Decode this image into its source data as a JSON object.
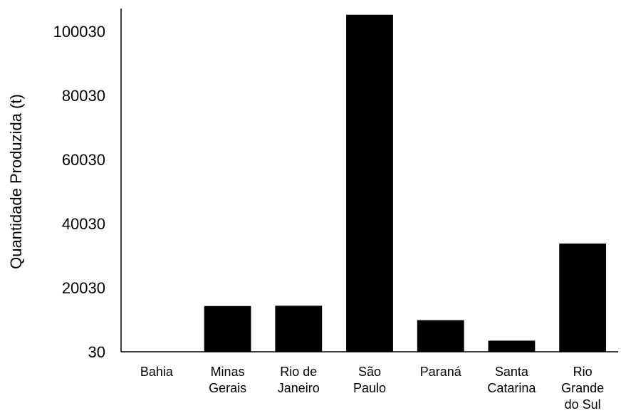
{
  "chart_data": {
    "type": "bar",
    "title": "",
    "xlabel": "",
    "ylabel": "Quantidade Produzida (t)",
    "categories": [
      [
        "Bahia"
      ],
      [
        "Minas",
        "Gerais"
      ],
      [
        "Rio de",
        "Janeiro"
      ],
      [
        "São",
        "Paulo"
      ],
      [
        "Paraná"
      ],
      [
        "Santa",
        "Catarina"
      ],
      [
        "Rio",
        "Grande",
        "do Sul"
      ]
    ],
    "values": [
      30,
      14300,
      14400,
      105200,
      9900,
      3500,
      33800
    ],
    "yticks": [
      "30",
      "20030",
      "40030",
      "60030",
      "80030",
      "100030"
    ],
    "ylim": [
      30,
      106500
    ],
    "grid": false,
    "bar_color": "#000000"
  }
}
